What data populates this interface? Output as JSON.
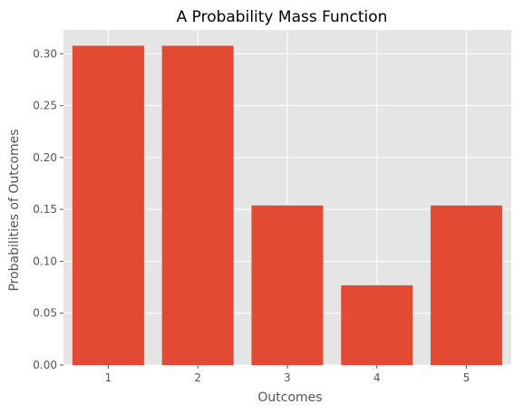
{
  "chart_data": {
    "type": "bar",
    "title": "A Probability Mass Function",
    "xlabel": "Outcomes",
    "ylabel": "Probabilities of Outcomes",
    "categories": [
      "1",
      "2",
      "3",
      "4",
      "5"
    ],
    "values": [
      0.3077,
      0.3077,
      0.1538,
      0.0769,
      0.1538
    ],
    "ylim": [
      0,
      0.323
    ],
    "yticks": [
      "0.00",
      "0.05",
      "0.10",
      "0.15",
      "0.20",
      "0.25",
      "0.30"
    ],
    "grid": true,
    "colors": {
      "bar": "#E24A33",
      "plot_background": "#E5E5E5",
      "grid": "#FFFFFF"
    }
  }
}
